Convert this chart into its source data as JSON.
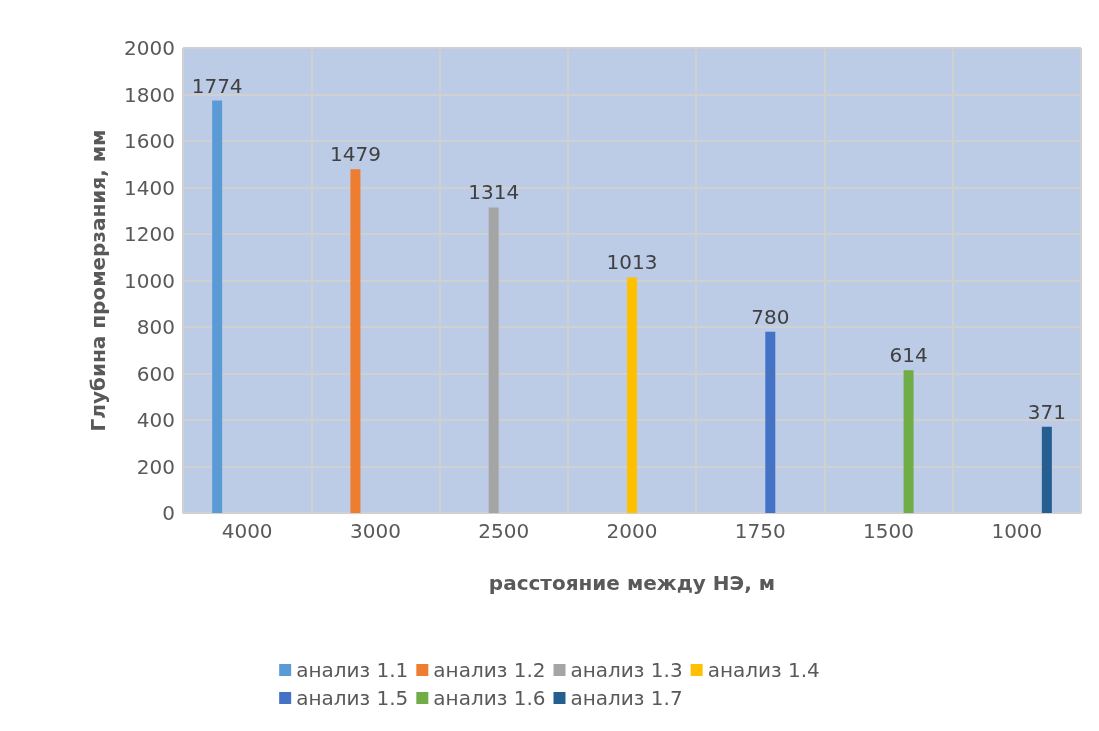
{
  "chart_data": {
    "type": "bar",
    "xlabel": "расстояние между НЭ, м",
    "ylabel": "Глубина промерзания, мм",
    "categories": [
      "4000",
      "3000",
      "2500",
      "2000",
      "1750",
      "1500",
      "1000"
    ],
    "series": [
      {
        "name": "анализ 1.1",
        "color": "#5b9bd5",
        "values": [
          1774,
          null,
          null,
          null,
          null,
          null,
          null
        ]
      },
      {
        "name": "анализ 1.2",
        "color": "#ed7d31",
        "values": [
          null,
          1479,
          null,
          null,
          null,
          null,
          null
        ]
      },
      {
        "name": "анализ 1.3",
        "color": "#a5a5a5",
        "values": [
          null,
          null,
          1314,
          null,
          null,
          null,
          null
        ]
      },
      {
        "name": "анализ 1.4",
        "color": "#ffc000",
        "values": [
          null,
          null,
          null,
          1013,
          null,
          null,
          null
        ]
      },
      {
        "name": "анализ 1.5",
        "color": "#4472c4",
        "values": [
          null,
          null,
          null,
          null,
          780,
          null,
          null
        ]
      },
      {
        "name": "анализ 1.6",
        "color": "#70ad47",
        "values": [
          null,
          null,
          null,
          null,
          null,
          614,
          null
        ]
      },
      {
        "name": "анализ 1.7",
        "color": "#255e91",
        "values": [
          null,
          null,
          null,
          null,
          null,
          null,
          371
        ]
      }
    ],
    "ylim": [
      0,
      2000
    ],
    "yticks": [
      0,
      200,
      400,
      600,
      800,
      1000,
      1200,
      1400,
      1600,
      1800,
      2000
    ],
    "grid": true,
    "legend": "bottom",
    "data_labels": true
  }
}
